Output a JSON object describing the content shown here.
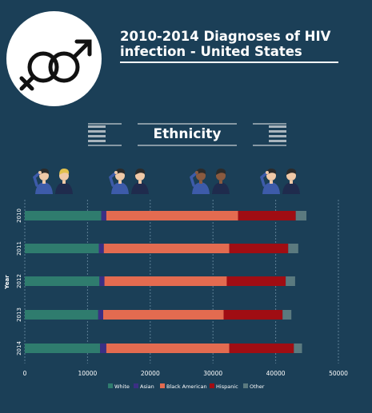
{
  "title": "2010-2014 Diagnoses of HIV infection - United States",
  "section_label": "Ethnicity",
  "icons": {
    "logo": "male-female-symbols-icon",
    "people": "people-pair-icon"
  },
  "colors": {
    "background": "#1b3f57",
    "grid": "#5d7f94",
    "White": "#2f7c6e",
    "Asian": "#3b2f84",
    "Black American": "#e36b50",
    "Hispanic": "#a00d13",
    "Other": "#5b7a7f",
    "skin_light": "#f0c9a7",
    "skin_dark": "#8a5a3f",
    "hair_dark": "#2b2b2b",
    "hair_blond": "#e2c04d",
    "shirt_blue": "#3d5ba9",
    "shirt_navy": "#1f2b4d"
  },
  "chart_data": {
    "type": "bar",
    "orientation": "horizontal",
    "stacked": true,
    "ylabel": "Year",
    "categories": [
      "2010",
      "2011",
      "2012",
      "2013",
      "2014"
    ],
    "xlim": [
      0,
      50000
    ],
    "xticks": [
      0,
      10000,
      20000,
      30000,
      40000,
      50000
    ],
    "grid": "vertical-dashed",
    "legend_position": "bottom",
    "series": [
      {
        "name": "White",
        "values": [
          12200,
          11800,
          11900,
          11700,
          12000
        ]
      },
      {
        "name": "Asian",
        "values": [
          800,
          800,
          800,
          800,
          1000
        ]
      },
      {
        "name": "Black American",
        "values": [
          21000,
          20000,
          19500,
          19200,
          19600
        ]
      },
      {
        "name": "Hispanic",
        "values": [
          9200,
          9400,
          9400,
          9400,
          10300
        ]
      },
      {
        "name": "Other",
        "values": [
          1700,
          1600,
          1500,
          1400,
          1300
        ]
      }
    ]
  }
}
